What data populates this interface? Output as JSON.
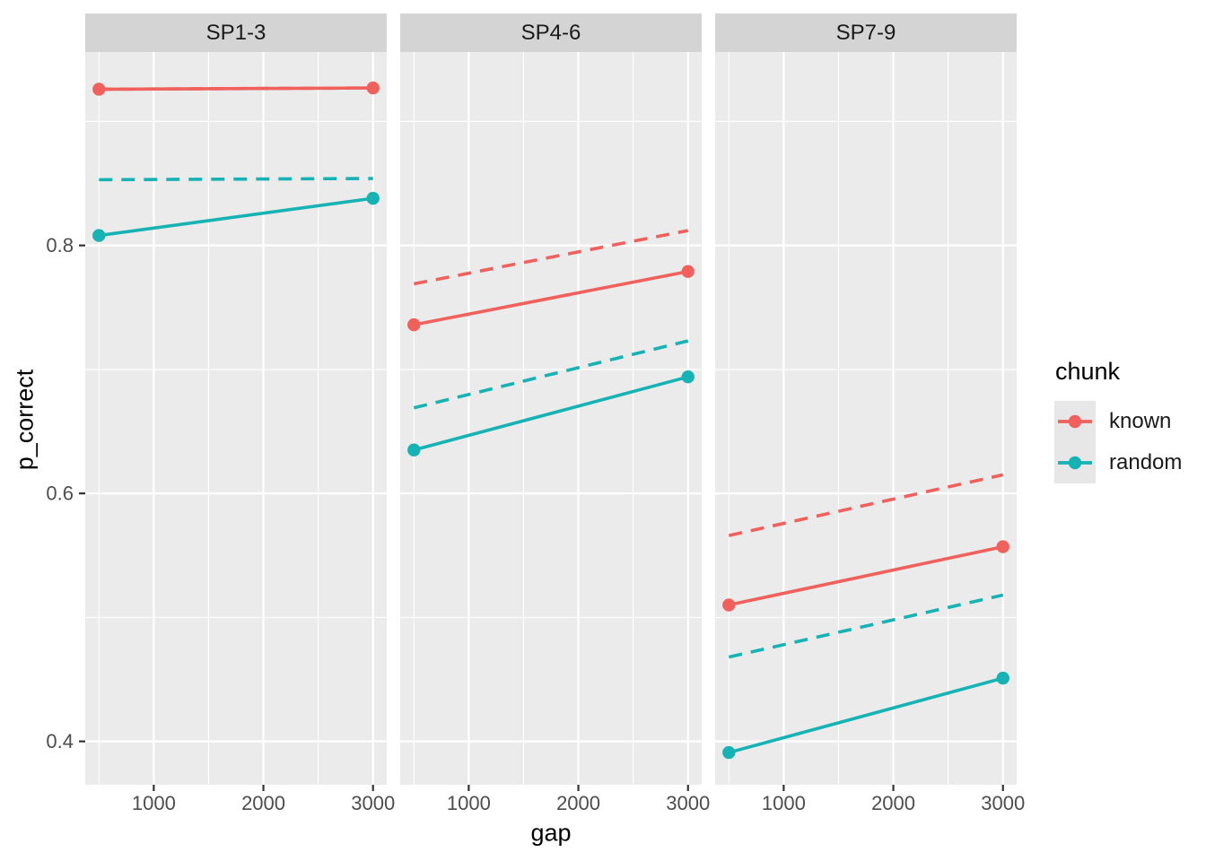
{
  "figure": {
    "background": "#ffffff",
    "panel_background": "#ebebeb",
    "grid_color": "#ffffff",
    "strip_background": "#d4d4d4",
    "axis_text_color": "#4d4d4d",
    "tick_mark_color": "#333333"
  },
  "axes": {
    "x_title": "gap",
    "y_title": "p_correct",
    "x_major_ticks": [
      1000,
      2000,
      3000
    ],
    "x_minor_ticks": [
      500,
      1500,
      2500
    ],
    "y_major_ticks": [
      0.4,
      0.6,
      0.8
    ],
    "y_minor_ticks": [
      0.5,
      0.7,
      0.9
    ],
    "x_range": [
      375,
      3125
    ],
    "y_range": [
      0.365,
      0.956
    ]
  },
  "legend": {
    "title": "chunk",
    "items": [
      {
        "label": "known",
        "color": "#f0605d"
      },
      {
        "label": "random",
        "color": "#16b2b4"
      }
    ]
  },
  "chart_data": {
    "type": "line",
    "title": "",
    "xlabel": "gap",
    "ylabel": "p_correct",
    "x": [
      500,
      3000
    ],
    "grid": true,
    "legend_position": "right",
    "facets": [
      {
        "label": "SP1-3",
        "series": [
          {
            "name": "known-predicted",
            "chunk": "known",
            "style": "dashed",
            "values": [
              0.926,
              0.927
            ]
          },
          {
            "name": "random-predicted",
            "chunk": "random",
            "style": "dashed",
            "values": [
              0.853,
              0.854
            ]
          },
          {
            "name": "known-observed",
            "chunk": "known",
            "style": "solid-points",
            "values": [
              0.926,
              0.927
            ]
          },
          {
            "name": "random-observed",
            "chunk": "random",
            "style": "solid-points",
            "values": [
              0.808,
              0.838
            ]
          }
        ]
      },
      {
        "label": "SP4-6",
        "series": [
          {
            "name": "known-predicted",
            "chunk": "known",
            "style": "dashed",
            "values": [
              0.769,
              0.812
            ]
          },
          {
            "name": "random-predicted",
            "chunk": "random",
            "style": "dashed",
            "values": [
              0.669,
              0.723
            ]
          },
          {
            "name": "known-observed",
            "chunk": "known",
            "style": "solid-points",
            "values": [
              0.736,
              0.779
            ]
          },
          {
            "name": "random-observed",
            "chunk": "random",
            "style": "solid-points",
            "values": [
              0.635,
              0.694
            ]
          }
        ]
      },
      {
        "label": "SP7-9",
        "series": [
          {
            "name": "known-predicted",
            "chunk": "known",
            "style": "dashed",
            "values": [
              0.566,
              0.615
            ]
          },
          {
            "name": "random-predicted",
            "chunk": "random",
            "style": "dashed",
            "values": [
              0.468,
              0.518
            ]
          },
          {
            "name": "known-observed",
            "chunk": "known",
            "style": "solid-points",
            "values": [
              0.51,
              0.557
            ]
          },
          {
            "name": "random-observed",
            "chunk": "random",
            "style": "solid-points",
            "values": [
              0.391,
              0.451
            ]
          }
        ]
      }
    ]
  }
}
